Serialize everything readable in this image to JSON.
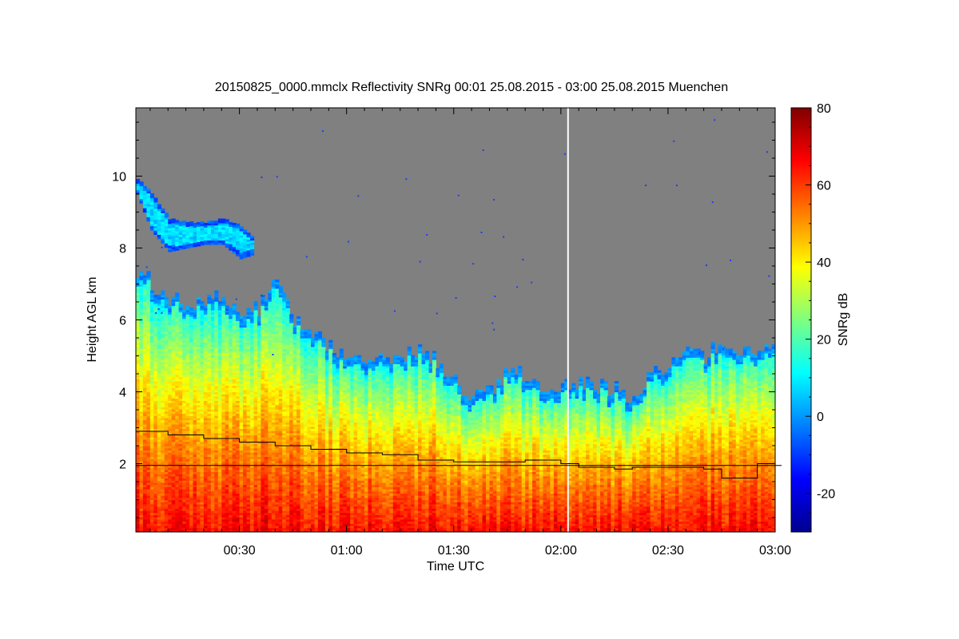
{
  "chart_data": {
    "type": "heatmap",
    "title": "20150825_0000.mmclx Reflectivity SNRg   00:01 25.08.2015 - 03:00 25.08.2015 Muenchen",
    "xlabel": "Time UTC",
    "ylabel": "Height AGL km",
    "colorbar_label": "SNRg dB",
    "x_range_minutes": [
      1,
      180
    ],
    "y_range_km": [
      0.1,
      11.9
    ],
    "z_range_db": [
      -30,
      80
    ],
    "x_ticks": [
      {
        "minutes": 30,
        "label": "00:30"
      },
      {
        "minutes": 60,
        "label": "01:00"
      },
      {
        "minutes": 90,
        "label": "01:30"
      },
      {
        "minutes": 120,
        "label": "02:00"
      },
      {
        "minutes": 150,
        "label": "02:30"
      },
      {
        "minutes": 180,
        "label": "03:00"
      }
    ],
    "y_ticks": [
      {
        "value": 2,
        "label": "2"
      },
      {
        "value": 4,
        "label": "4"
      },
      {
        "value": 6,
        "label": "6"
      },
      {
        "value": 8,
        "label": "8"
      },
      {
        "value": 10,
        "label": "10"
      }
    ],
    "colorbar_ticks": [
      {
        "value": -20,
        "label": "-20"
      },
      {
        "value": 0,
        "label": "0"
      },
      {
        "value": 20,
        "label": "20"
      },
      {
        "value": 40,
        "label": "40"
      },
      {
        "value": 60,
        "label": "60"
      },
      {
        "value": 80,
        "label": "80"
      }
    ],
    "no_data_color": "#808080",
    "gap_line_minute": 122,
    "cloud_top_km": {
      "minutes": [
        1,
        5,
        10,
        15,
        20,
        25,
        30,
        35,
        40,
        45,
        50,
        55,
        60,
        65,
        70,
        75,
        80,
        85,
        90,
        95,
        100,
        105,
        110,
        115,
        120,
        125,
        130,
        135,
        140,
        145,
        150,
        155,
        160,
        165,
        170,
        175,
        180
      ],
      "values": [
        7.4,
        7.0,
        6.6,
        6.4,
        6.5,
        6.7,
        6.2,
        6.3,
        7.0,
        6.0,
        5.7,
        5.2,
        4.9,
        4.8,
        4.9,
        5.0,
        5.2,
        4.8,
        4.2,
        3.8,
        4.0,
        4.6,
        4.3,
        4.1,
        4.1,
        4.2,
        4.1,
        4.0,
        3.7,
        4.6,
        4.7,
        5.1,
        5.0,
        5.2,
        5.1,
        5.2,
        5.3
      ]
    },
    "upper_cloud": {
      "minutes": [
        1,
        5,
        10,
        15,
        20,
        25,
        30,
        33
      ],
      "top_km": [
        9.9,
        9.5,
        8.8,
        8.7,
        8.7,
        8.8,
        8.6,
        8.3
      ],
      "base_km": [
        9.5,
        8.5,
        7.9,
        8.0,
        8.1,
        8.1,
        7.7,
        7.8
      ]
    },
    "boundary_layer_km": {
      "minutes": [
        1,
        10,
        20,
        30,
        40,
        50,
        60,
        70,
        80,
        90,
        100,
        110,
        120,
        125,
        130,
        135,
        140,
        150,
        160,
        165,
        170,
        175,
        180
      ],
      "values": [
        2.9,
        2.8,
        2.7,
        2.6,
        2.5,
        2.4,
        2.3,
        2.25,
        2.1,
        2.05,
        2.05,
        2.1,
        2.0,
        1.9,
        1.9,
        1.85,
        1.9,
        1.9,
        1.85,
        1.6,
        1.6,
        2.0,
        2.0
      ]
    },
    "reference_height_km": 1.95
  }
}
